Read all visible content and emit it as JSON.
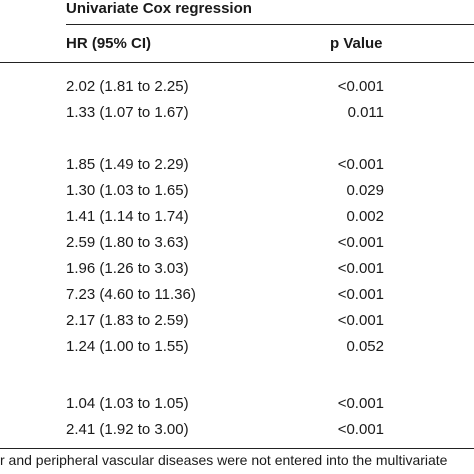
{
  "table": {
    "group_title": "Univariate Cox regression",
    "columns": {
      "hr": "HR (95% CI)",
      "p": "p Value"
    },
    "rows": [
      {
        "hr": "2.02 (1.81 to 2.25)",
        "p": "<0.001"
      },
      {
        "hr": "1.33 (1.07 to 1.67)",
        "p": "0.011"
      },
      {
        "hr": "1.85 (1.49 to 2.29)",
        "p": "<0.001"
      },
      {
        "hr": "1.30 (1.03 to 1.65)",
        "p": "0.029"
      },
      {
        "hr": "1.41 (1.14 to 1.74)",
        "p": "0.002"
      },
      {
        "hr": "2.59 (1.80 to 3.63)",
        "p": "<0.001"
      },
      {
        "hr": "1.96 (1.26 to 3.03)",
        "p": "<0.001"
      },
      {
        "hr": "7.23 (4.60 to 11.36)",
        "p": "<0.001"
      },
      {
        "hr": "2.17 (1.83 to 2.59)",
        "p": "<0.001"
      },
      {
        "hr": "1.24 (1.00 to 1.55)",
        "p": "0.052"
      },
      {
        "hr": "1.04 (1.03 to 1.05)",
        "p": "<0.001"
      },
      {
        "hr": "2.41 (1.92 to 3.00)",
        "p": "<0.001"
      }
    ]
  },
  "footnote": "r and peripheral vascular diseases were not entered into the multivariate"
}
